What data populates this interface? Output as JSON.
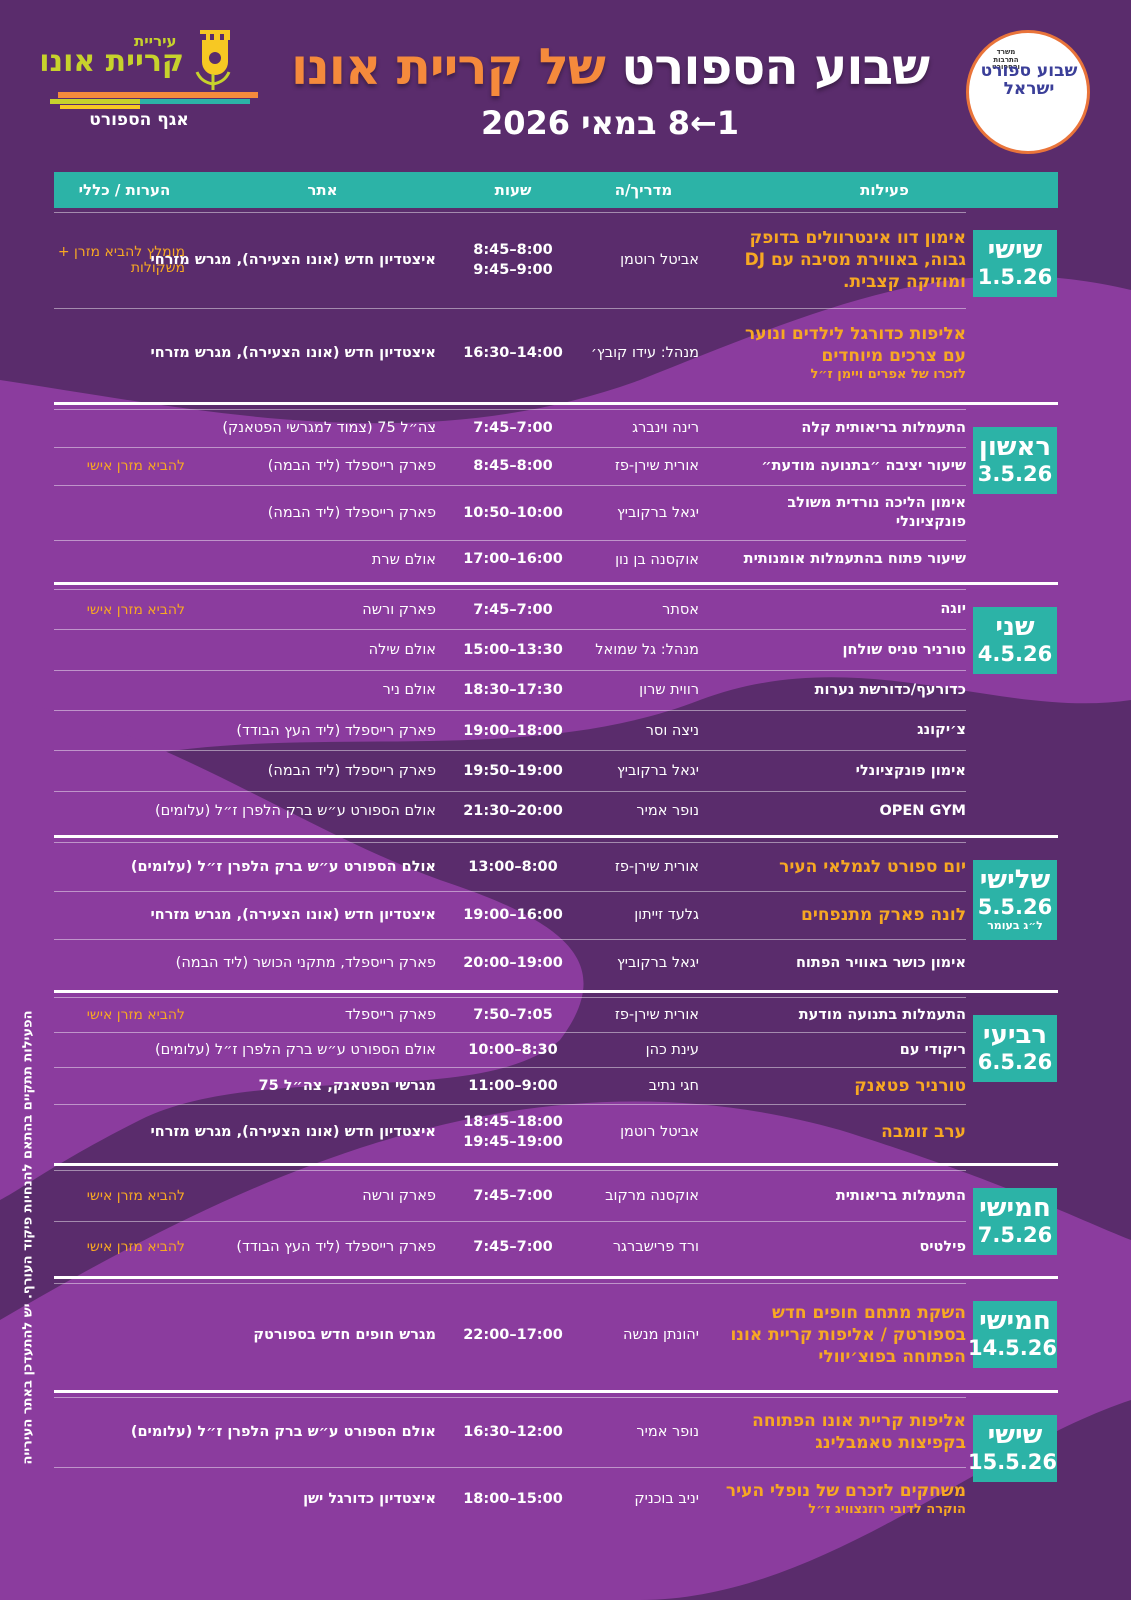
{
  "header": {
    "logo_left": {
      "line1": "עיריית",
      "line2": "קריית אונו",
      "department": "אגף הספורט"
    },
    "title_part1": "שבוע הספורט",
    "title_part2": "של קריית אונו",
    "dates": "1←8 במאי 2026",
    "logo_right": {
      "ministry": "משרד התרבות והספורט",
      "name": "שבוע ספורט ישראל"
    }
  },
  "table": {
    "columns": [
      "פעילות",
      "מדריך/ה",
      "שעות",
      "אתר",
      "הערות / כללי"
    ],
    "days": [
      {
        "day": "שישי",
        "date": "1.5.26",
        "rows": [
          {
            "activity": "אימון דוו אינטרוולים בדופק גבוה, באווירת מסיבה עם DJ ומוזיקה קצבית.",
            "activity_color": "#f7a823",
            "instructor": "אביטל רוטמן",
            "hours": [
              "8:00–8:45",
              "9:00–9:45"
            ],
            "site": "איצטדיון חדש (אונו הצעירה), מגרש מזרחי",
            "notes": "מומלץ להביא מזרן + משקולות"
          },
          {
            "activity": "אליפות כדורגל לילדים ונוער עם צרכים מיוחדים",
            "activity_note": "לזכרו של אפרים ויימן ז״ל",
            "activity_color": "#f7a823",
            "instructor": "מנהל: עידו קובץ׳",
            "hours": [
              "14:00–16:30"
            ],
            "site": "איצטדיון חדש (אונו הצעירה), מגרש מזרחי"
          }
        ]
      },
      {
        "day": "ראשון",
        "date": "3.5.26",
        "rows": [
          {
            "activity": "התעמלות בריאותית קלה",
            "instructor": "רינה וינברג",
            "hours": [
              "7:00–7:45"
            ],
            "site": "צה״ל 75 (צמוד למגרשי הפטאנק)"
          },
          {
            "activity": "שיעור יציבה ״בתנועה מודעת״",
            "instructor": "אורית שירן-פז",
            "hours": [
              "8:00–8:45"
            ],
            "site": "פארק רייספלד (ליד הבמה)",
            "notes": "להביא מזרן אישי"
          },
          {
            "activity": "אימון הליכה נורדית משולב פונקציונלי",
            "instructor": "יגאל ברקוביץ",
            "hours": [
              "10:00–10:50"
            ],
            "site": "פארק רייספלד (ליד הבמה)"
          },
          {
            "activity": "שיעור פתוח בהתעמלות אומנותית",
            "instructor": "אוקסנה בן נון",
            "hours": [
              "16:00–17:00"
            ],
            "site": "אולם שרת"
          }
        ]
      },
      {
        "day": "שני",
        "date": "4.5.26",
        "rows": [
          {
            "activity": "יוגה",
            "instructor": "אסתר",
            "hours": [
              "7:00–7:45"
            ],
            "site": "פארק ורשה",
            "notes": "להביא מזרן אישי"
          },
          {
            "activity": "טורניר טניס שולחן",
            "instructor": "מנהל: גל שמואל",
            "hours": [
              "13:30–15:00"
            ],
            "site": "אולם שילה"
          },
          {
            "activity": "כדורעף/כדורשת נערות",
            "instructor": "רווית שרון",
            "hours": [
              "17:30–18:30"
            ],
            "site": "אולם ניר"
          },
          {
            "activity": "צ׳יקונג",
            "instructor": "ניצה וסר",
            "hours": [
              "18:00–19:00"
            ],
            "site": "פארק רייספלד (ליד העץ הבודד)"
          },
          {
            "activity": "אימון פונקציונלי",
            "instructor": "יגאל ברקוביץ",
            "hours": [
              "19:00–19:50"
            ],
            "site": "פארק רייספלד (ליד הבמה)"
          },
          {
            "activity": "OPEN GYM",
            "instructor": "נופר אמיר",
            "hours": [
              "20:00–21:30"
            ],
            "site": "אולם הספורט ע״ש ברק הלפרן ז״ל (עלומים)"
          }
        ]
      },
      {
        "day": "שלישי",
        "date": "5.5.26",
        "day_note": "ל״ג בעומר",
        "rows": [
          {
            "activity": "יום ספורט לגמלאי העיר",
            "activity_color": "#f7a823",
            "instructor": "אורית שירן-פז",
            "hours": [
              "8:00–13:00"
            ],
            "site": "אולם הספורט ע״ש ברק הלפרן ז״ל (עלומים)"
          },
          {
            "activity": "לונה פארק מתנפחים",
            "activity_color": "#f7a823",
            "instructor": "גלעד זייתון",
            "hours": [
              "16:00–19:00"
            ],
            "site": "איצטדיון חדש (אונו הצעירה), מגרש מזרחי"
          },
          {
            "activity": "אימון כושר באוויר הפתוח",
            "instructor": "יגאל ברקוביץ",
            "hours": [
              "19:00–20:00"
            ],
            "site": "פארק רייספלד, מתקני הכושר (ליד הבמה)"
          }
        ]
      },
      {
        "day": "רביעי",
        "date": "6.5.26",
        "rows": [
          {
            "activity": "התעמלות בתנועה מודעת",
            "instructor": "אורית שירן-פז",
            "hours": [
              "7:05–7:50"
            ],
            "site": "פארק רייספלד",
            "notes": "להביא מזרן אישי"
          },
          {
            "activity": "ריקודי עם",
            "instructor": "עינת כהן",
            "hours": [
              "8:30–10:00"
            ],
            "site": "אולם הספורט ע״ש ברק הלפרן ז״ל (עלומים)"
          },
          {
            "activity": "טורניר פטאנק",
            "activity_color": "#f7a823",
            "instructor": "חגי נתיב",
            "hours": [
              "9:00–11:00"
            ],
            "site": "מגרשי הפטאנק, צה״ל 75"
          },
          {
            "activity": "ערב זומבה",
            "activity_color": "#f7a823",
            "instructor": "אביטל רוטמן",
            "hours": [
              "18:00–18:45",
              "19:00–19:45"
            ],
            "site": "איצטדיון חדש (אונו הצעירה), מגרש מזרחי"
          }
        ]
      },
      {
        "day": "חמישי",
        "date": "7.5.26",
        "rows": [
          {
            "activity": "התעמלות בריאותית",
            "instructor": "אוקסנה מרקוב",
            "hours": [
              "7:00–7:45"
            ],
            "site": "פארק ורשה",
            "notes": "להביא מזרן אישי"
          },
          {
            "activity": "פילטיס",
            "instructor": "ורד פרישברגר",
            "hours": [
              "7:00–7:45"
            ],
            "site": "פארק רייספלד (ליד העץ הבודד)",
            "notes": "להביא מזרן אישי"
          }
        ]
      },
      {
        "day": "חמישי",
        "date": "14.5.26",
        "rows": [
          {
            "activity": "השקת מתחם חופים חדש בספורטק / אליפות קריית אונו הפתוחה בפוצ׳יוולי",
            "activity_color": "#f7a823",
            "instructor": "יהונתן מנשה",
            "hours": [
              "17:00–22:00"
            ],
            "site": "מגרש חופים חדש בספורטק"
          }
        ]
      },
      {
        "day": "שישי",
        "date": "15.5.26",
        "rows": [
          {
            "activity": "אליפות קריית אונו הפתוחה בקפיצות טאמבלינג",
            "activity_color": "#f7a823",
            "instructor": "נופר אמיר",
            "hours": [
              "12:00–16:30"
            ],
            "site": "אולם הספורט ע״ש ברק הלפרן ז״ל (עלומים)"
          },
          {
            "activity": "משחקים לזכרם של נופלי העיר",
            "activity_note": "הוקרה לדובי רוזנצוויג ז״ל",
            "activity_color": "#f7a823",
            "instructor": "יניב בוכניק",
            "hours": [
              "15:00–18:00"
            ],
            "site": "איצטדיון כדורגל ישן"
          }
        ]
      }
    ]
  },
  "side_note": "הפעילות תתקיים בהתאם להנחיות פיקוד העורף. יש להתעדכן באתר העירייה"
}
